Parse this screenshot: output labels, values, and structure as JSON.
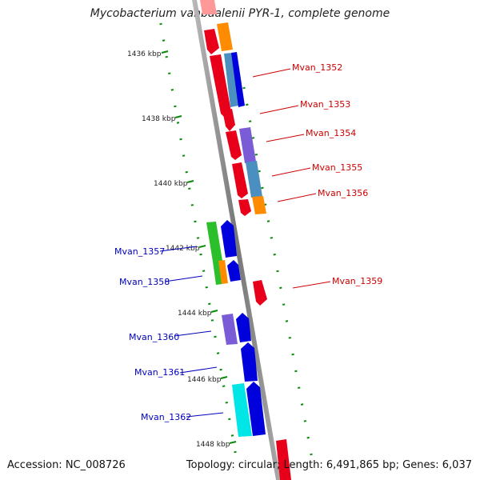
{
  "title": "Mycobacterium vanbaalenii PYR-1, complete genome",
  "footer": {
    "accession": "Accession: NC_008726",
    "stats": "Topology: circular; Length: 6,491,865 bp; Genes: 6,037"
  },
  "colors": {
    "forward_label": "#cc0000",
    "reverse_label": "#0000bb",
    "backbone": "#888888",
    "ticks": "#0a8a0a"
  },
  "kbp_ticks": [
    "1436 kbp",
    "1438 kbp",
    "1440 kbp",
    "1442 kbp",
    "1444 kbp",
    "1446 kbp",
    "1448 kbp"
  ],
  "gene_labels": {
    "forward": [
      "Mvan_1352",
      "Mvan_1353",
      "Mvan_1354",
      "Mvan_1355",
      "Mvan_1356",
      "Mvan_1359"
    ],
    "reverse": [
      "Mvan_1357",
      "Mvan_1358",
      "Mvan_1360",
      "Mvan_1361",
      "Mvan_1362"
    ]
  }
}
